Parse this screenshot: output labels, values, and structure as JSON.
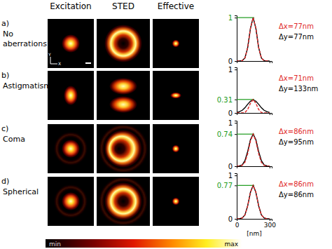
{
  "figure": {
    "column_titles": [
      "Excitation",
      "STED",
      "Effective"
    ],
    "rows": [
      {
        "letter": "a)",
        "label_lines": [
          "No",
          "aberrations"
        ]
      },
      {
        "letter": "b)",
        "label_lines": [
          "Astigmatism"
        ]
      },
      {
        "letter": "c)",
        "label_lines": [
          "Coma"
        ]
      },
      {
        "letter": "d)",
        "label_lines": [
          "Spherical"
        ]
      }
    ],
    "axes_indicator": {
      "y": "Y",
      "x": "X"
    },
    "colorbar": {
      "min_label": "min",
      "max_label": "max"
    }
  },
  "chart_data": [
    {
      "type": "line",
      "legend": "right",
      "tick_labels": "y",
      "x": [
        0,
        25,
        50,
        75,
        100,
        125,
        150,
        175,
        200,
        225,
        250,
        275,
        300
      ],
      "series": [
        {
          "name": "Δx=77nm",
          "color": "#e02828",
          "line_style": "dashed",
          "values": [
            0,
            0,
            0.01,
            0.07,
            0.31,
            0.75,
            1,
            0.75,
            0.31,
            0.07,
            0.01,
            0,
            0
          ]
        },
        {
          "name": "Δy=77nm",
          "color": "#000000",
          "line_style": "solid",
          "values": [
            0,
            0,
            0.01,
            0.07,
            0.31,
            0.75,
            1,
            0.75,
            0.31,
            0.07,
            0.01,
            0,
            0
          ]
        }
      ],
      "xlim": [
        0,
        320
      ],
      "ylim": [
        0,
        1.05
      ],
      "xticks": [
        0,
        300
      ],
      "yticks": [
        0,
        1
      ]
    },
    {
      "type": "line",
      "legend": "right",
      "tick_labels": "y",
      "x": [
        0,
        25,
        50,
        75,
        100,
        125,
        150,
        175,
        200,
        225,
        250,
        275,
        300
      ],
      "series": [
        {
          "name": "Δx=71nm",
          "color": "#e02828",
          "line_style": "dashed",
          "values": [
            0,
            0,
            0,
            0.01,
            0.08,
            0.22,
            0.31,
            0.22,
            0.08,
            0.01,
            0,
            0,
            0
          ]
        },
        {
          "name": "Δy=133nm",
          "color": "#000000",
          "line_style": "solid",
          "values": [
            0.01,
            0.03,
            0.06,
            0.12,
            0.2,
            0.27,
            0.3,
            0.27,
            0.2,
            0.12,
            0.06,
            0.03,
            0.01
          ]
        }
      ],
      "xlim": [
        0,
        320
      ],
      "ylim": [
        0,
        1.05
      ],
      "xticks": [
        0,
        300
      ],
      "yticks": [
        0,
        0.31,
        1
      ]
    },
    {
      "type": "line",
      "legend": "right",
      "tick_labels": "y",
      "x": [
        0,
        25,
        50,
        75,
        100,
        125,
        150,
        175,
        200,
        225,
        250,
        275,
        300
      ],
      "series": [
        {
          "name": "Δx=86nm",
          "color": "#e02828",
          "line_style": "dashed",
          "values": [
            0,
            0,
            0.02,
            0.09,
            0.29,
            0.58,
            0.74,
            0.58,
            0.29,
            0.09,
            0.02,
            0,
            0
          ]
        },
        {
          "name": "Δy=95nm",
          "color": "#000000",
          "line_style": "solid",
          "values": [
            0,
            0.01,
            0.03,
            0.13,
            0.34,
            0.61,
            0.74,
            0.61,
            0.34,
            0.13,
            0.03,
            0.01,
            0
          ]
        }
      ],
      "xlim": [
        0,
        320
      ],
      "ylim": [
        0,
        1.05
      ],
      "xticks": [
        0,
        300
      ],
      "yticks": [
        0,
        0.74,
        1
      ]
    },
    {
      "type": "line",
      "legend": "right",
      "x_label": "[nm]",
      "x": [
        0,
        25,
        50,
        75,
        100,
        125,
        150,
        175,
        200,
        225,
        250,
        275,
        300
      ],
      "series": [
        {
          "name": "Δx=86nm",
          "color": "#e02828",
          "line_style": "dashed",
          "values": [
            0,
            0,
            0.02,
            0.09,
            0.3,
            0.61,
            0.77,
            0.61,
            0.3,
            0.09,
            0.02,
            0,
            0
          ]
        },
        {
          "name": "Δy=86nm",
          "color": "#000000",
          "line_style": "solid",
          "values": [
            0,
            0,
            0.02,
            0.09,
            0.3,
            0.61,
            0.77,
            0.61,
            0.3,
            0.09,
            0.02,
            0,
            0
          ]
        }
      ],
      "xlim": [
        0,
        320
      ],
      "ylim": [
        0,
        1.05
      ],
      "xticks": [
        0,
        300
      ],
      "yticks": [
        0,
        0.77,
        1
      ]
    }
  ]
}
